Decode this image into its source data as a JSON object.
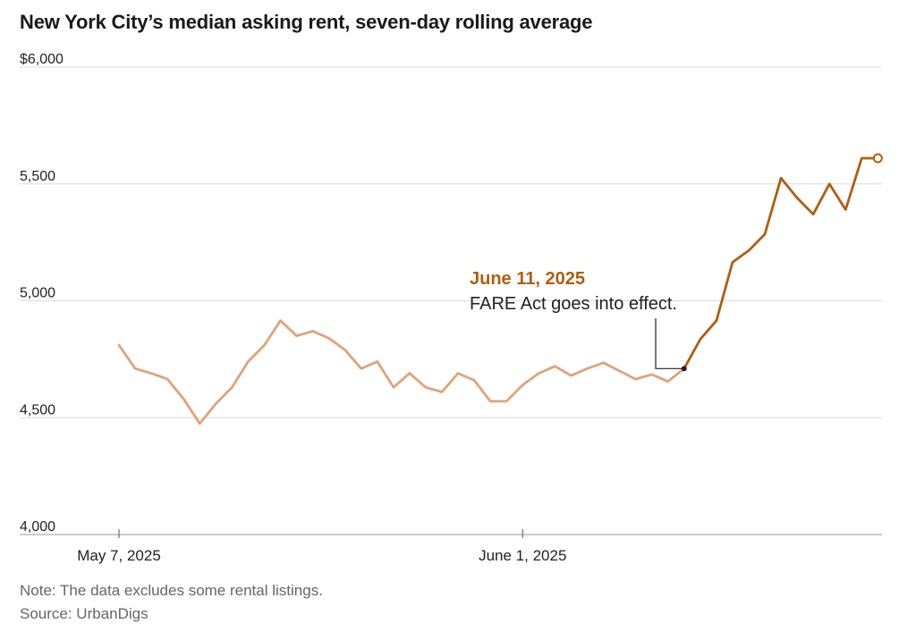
{
  "chart_data": {
    "type": "line",
    "title": "New York City’s median asking rent, seven-day rolling average",
    "ylim": [
      4000,
      6000
    ],
    "yticks": [
      {
        "value": 6000,
        "label": "$6,000"
      },
      {
        "value": 5500,
        "label": "5,500"
      },
      {
        "value": 5000,
        "label": "5,000"
      },
      {
        "value": 4500,
        "label": "4,500"
      },
      {
        "value": 4000,
        "label": "4,000"
      }
    ],
    "xticks": [
      {
        "date": "2025-05-07",
        "label": "May 7, 2025"
      },
      {
        "date": "2025-06-01",
        "label": "June 1, 2025"
      }
    ],
    "x_start": "2025-05-07",
    "grid": true,
    "series": [
      {
        "x": [
          "2025-05-07",
          "2025-05-08",
          "2025-05-09",
          "2025-05-10",
          "2025-05-11",
          "2025-05-12",
          "2025-05-13",
          "2025-05-14",
          "2025-05-15",
          "2025-05-16",
          "2025-05-17",
          "2025-05-18",
          "2025-05-19",
          "2025-05-20",
          "2025-05-21",
          "2025-05-22",
          "2025-05-23",
          "2025-05-24",
          "2025-05-25",
          "2025-05-26",
          "2025-05-27",
          "2025-05-28",
          "2025-05-29",
          "2025-05-30",
          "2025-05-31",
          "2025-06-01",
          "2025-06-02",
          "2025-06-03",
          "2025-06-04",
          "2025-06-05",
          "2025-06-06",
          "2025-06-07",
          "2025-06-08",
          "2025-06-09",
          "2025-06-10",
          "2025-06-11",
          "2025-06-12",
          "2025-06-13",
          "2025-06-14",
          "2025-06-15",
          "2025-06-16",
          "2025-06-17",
          "2025-06-18",
          "2025-06-19",
          "2025-06-20",
          "2025-06-21",
          "2025-06-22",
          "2025-06-23"
        ],
        "values": [
          4810,
          4710,
          4690,
          4665,
          4580,
          4475,
          4560,
          4630,
          4740,
          4810,
          4915,
          4850,
          4870,
          4840,
          4790,
          4710,
          4740,
          4630,
          4690,
          4630,
          4610,
          4690,
          4660,
          4570,
          4570,
          4640,
          4690,
          4720,
          4680,
          4710,
          4735,
          4700,
          4665,
          4685,
          4655,
          4710,
          4835,
          4915,
          5165,
          5215,
          5285,
          5525,
          5440,
          5370,
          5500,
          5390,
          5610,
          5610
        ],
        "highlight_from": "2025-06-11",
        "color_before": "#e3a27a",
        "color_after": "#b05e0f"
      }
    ],
    "annotation": {
      "date": "2025-06-11",
      "date_label": "June 11, 2025",
      "text": "FARE Act goes into effect.",
      "date_color": "#b05e0f"
    }
  },
  "note": "Note: The data excludes some rental listings.",
  "source": "Source: UrbanDigs"
}
